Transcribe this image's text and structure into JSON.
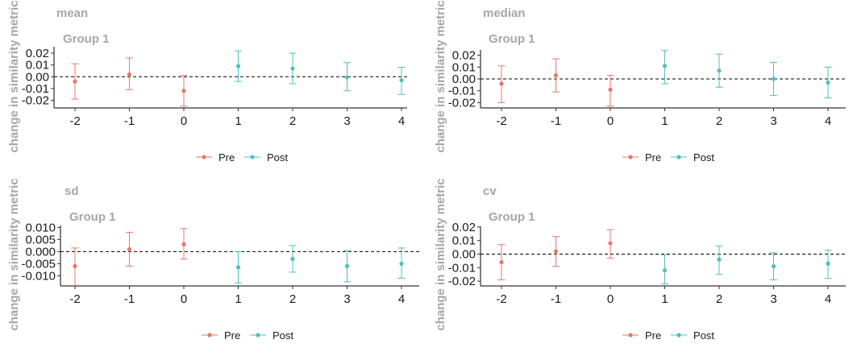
{
  "colors": {
    "pre": "#e7776b",
    "post": "#4fbfbf",
    "zero_line": "#000000",
    "label_gray": "#a6a6a6"
  },
  "legend": {
    "pre": "Pre",
    "post": "Post"
  },
  "chart_data": [
    {
      "type": "scatter",
      "title": "mean",
      "subtitle": "Group 1",
      "ylabel": "change in similarity metric",
      "xlabel": "",
      "x_ticks": [
        "-2",
        "-1",
        "0",
        "1",
        "2",
        "3",
        "4"
      ],
      "y_ticks": [
        "0.02",
        "0.01",
        "0.00",
        "-0.01",
        "-0.02"
      ],
      "y_tick_values": [
        0.02,
        0.01,
        0.0,
        -0.01,
        -0.02
      ],
      "ylim": [
        -0.0265,
        0.0255
      ],
      "zero_line": true,
      "legend_position": "bottom",
      "series": [
        {
          "name": "Pre",
          "points": [
            {
              "x": -2,
              "y": -0.004,
              "lo": -0.019,
              "hi": 0.011
            },
            {
              "x": -1,
              "y": 0.002,
              "lo": -0.011,
              "hi": 0.016
            },
            {
              "x": 0,
              "y": -0.012,
              "lo": -0.025,
              "hi": 0.001
            }
          ]
        },
        {
          "name": "Post",
          "points": [
            {
              "x": 1,
              "y": 0.009,
              "lo": -0.004,
              "hi": 0.022
            },
            {
              "x": 2,
              "y": 0.007,
              "lo": -0.006,
              "hi": 0.02
            },
            {
              "x": 3,
              "y": -0.0005,
              "lo": -0.012,
              "hi": 0.012
            },
            {
              "x": 4,
              "y": -0.003,
              "lo": -0.015,
              "hi": 0.008
            }
          ]
        }
      ]
    },
    {
      "type": "scatter",
      "title": "median",
      "subtitle": "Group 1",
      "ylabel": "change in similarity metric",
      "xlabel": "",
      "x_ticks": [
        "-2",
        "-1",
        "0",
        "1",
        "2",
        "3",
        "4"
      ],
      "y_ticks": [
        "0.02",
        "0.01",
        "0.00",
        "-0.01",
        "-0.02"
      ],
      "y_tick_values": [
        0.02,
        0.01,
        0.0,
        -0.01,
        -0.02
      ],
      "ylim": [
        -0.0245,
        0.0245
      ],
      "zero_line": true,
      "legend_position": "bottom",
      "series": [
        {
          "name": "Pre",
          "points": [
            {
              "x": -2,
              "y": -0.004,
              "lo": -0.02,
              "hi": 0.011
            },
            {
              "x": -1,
              "y": 0.003,
              "lo": -0.011,
              "hi": 0.017
            },
            {
              "x": 0,
              "y": -0.009,
              "lo": -0.023,
              "hi": 0.003
            }
          ]
        },
        {
          "name": "Post",
          "points": [
            {
              "x": 1,
              "y": 0.011,
              "lo": -0.004,
              "hi": 0.024
            },
            {
              "x": 2,
              "y": 0.007,
              "lo": -0.007,
              "hi": 0.021
            },
            {
              "x": 3,
              "y": 0.0,
              "lo": -0.014,
              "hi": 0.014
            },
            {
              "x": 4,
              "y": -0.003,
              "lo": -0.016,
              "hi": 0.01
            }
          ]
        }
      ]
    },
    {
      "type": "scatter",
      "title": "sd",
      "subtitle": "Group 1",
      "ylabel": "change in similarity metric",
      "xlabel": "",
      "x_ticks": [
        "-2",
        "-1",
        "0",
        "1",
        "2",
        "3",
        "4"
      ],
      "y_ticks": [
        "0.010",
        "0.005",
        "0.000",
        "-0.005",
        "-0.010"
      ],
      "y_tick_values": [
        0.01,
        0.005,
        0.0,
        -0.005,
        -0.01
      ],
      "ylim": [
        -0.0142,
        0.0108
      ],
      "zero_line": true,
      "legend_position": "bottom",
      "series": [
        {
          "name": "Pre",
          "points": [
            {
              "x": -2,
              "y": -0.006,
              "lo": -0.014,
              "hi": 0.0015
            },
            {
              "x": -1,
              "y": 0.001,
              "lo": -0.006,
              "hi": 0.008
            },
            {
              "x": 0,
              "y": 0.003,
              "lo": -0.003,
              "hi": 0.0095
            }
          ]
        },
        {
          "name": "Post",
          "points": [
            {
              "x": 1,
              "y": -0.0065,
              "lo": -0.013,
              "hi": 0.0
            },
            {
              "x": 2,
              "y": -0.003,
              "lo": -0.0085,
              "hi": 0.0025
            },
            {
              "x": 3,
              "y": -0.006,
              "lo": -0.0125,
              "hi": 0.0005
            },
            {
              "x": 4,
              "y": -0.005,
              "lo": -0.011,
              "hi": 0.0015
            }
          ]
        }
      ]
    },
    {
      "type": "scatter",
      "title": "cv",
      "subtitle": "Group 1",
      "ylabel": "change in similarity metric",
      "xlabel": "",
      "x_ticks": [
        "-2",
        "-1",
        "0",
        "1",
        "2",
        "3",
        "4"
      ],
      "y_ticks": [
        "0.02",
        "0.01",
        "0.00",
        "-0.01",
        "-0.02"
      ],
      "y_tick_values": [
        0.02,
        0.01,
        0.0,
        -0.01,
        -0.02
      ],
      "ylim": [
        -0.0235,
        0.0205
      ],
      "zero_line": true,
      "legend_position": "bottom",
      "series": [
        {
          "name": "Pre",
          "points": [
            {
              "x": -2,
              "y": -0.006,
              "lo": -0.019,
              "hi": 0.007
            },
            {
              "x": -1,
              "y": 0.002,
              "lo": -0.009,
              "hi": 0.013
            },
            {
              "x": 0,
              "y": 0.008,
              "lo": -0.003,
              "hi": 0.018
            }
          ]
        },
        {
          "name": "Post",
          "points": [
            {
              "x": 1,
              "y": -0.012,
              "lo": -0.022,
              "hi": -0.0005
            },
            {
              "x": 2,
              "y": -0.004,
              "lo": -0.015,
              "hi": 0.006
            },
            {
              "x": 3,
              "y": -0.009,
              "lo": -0.019,
              "hi": 0.001
            },
            {
              "x": 4,
              "y": -0.007,
              "lo": -0.018,
              "hi": 0.003
            }
          ]
        }
      ]
    }
  ]
}
